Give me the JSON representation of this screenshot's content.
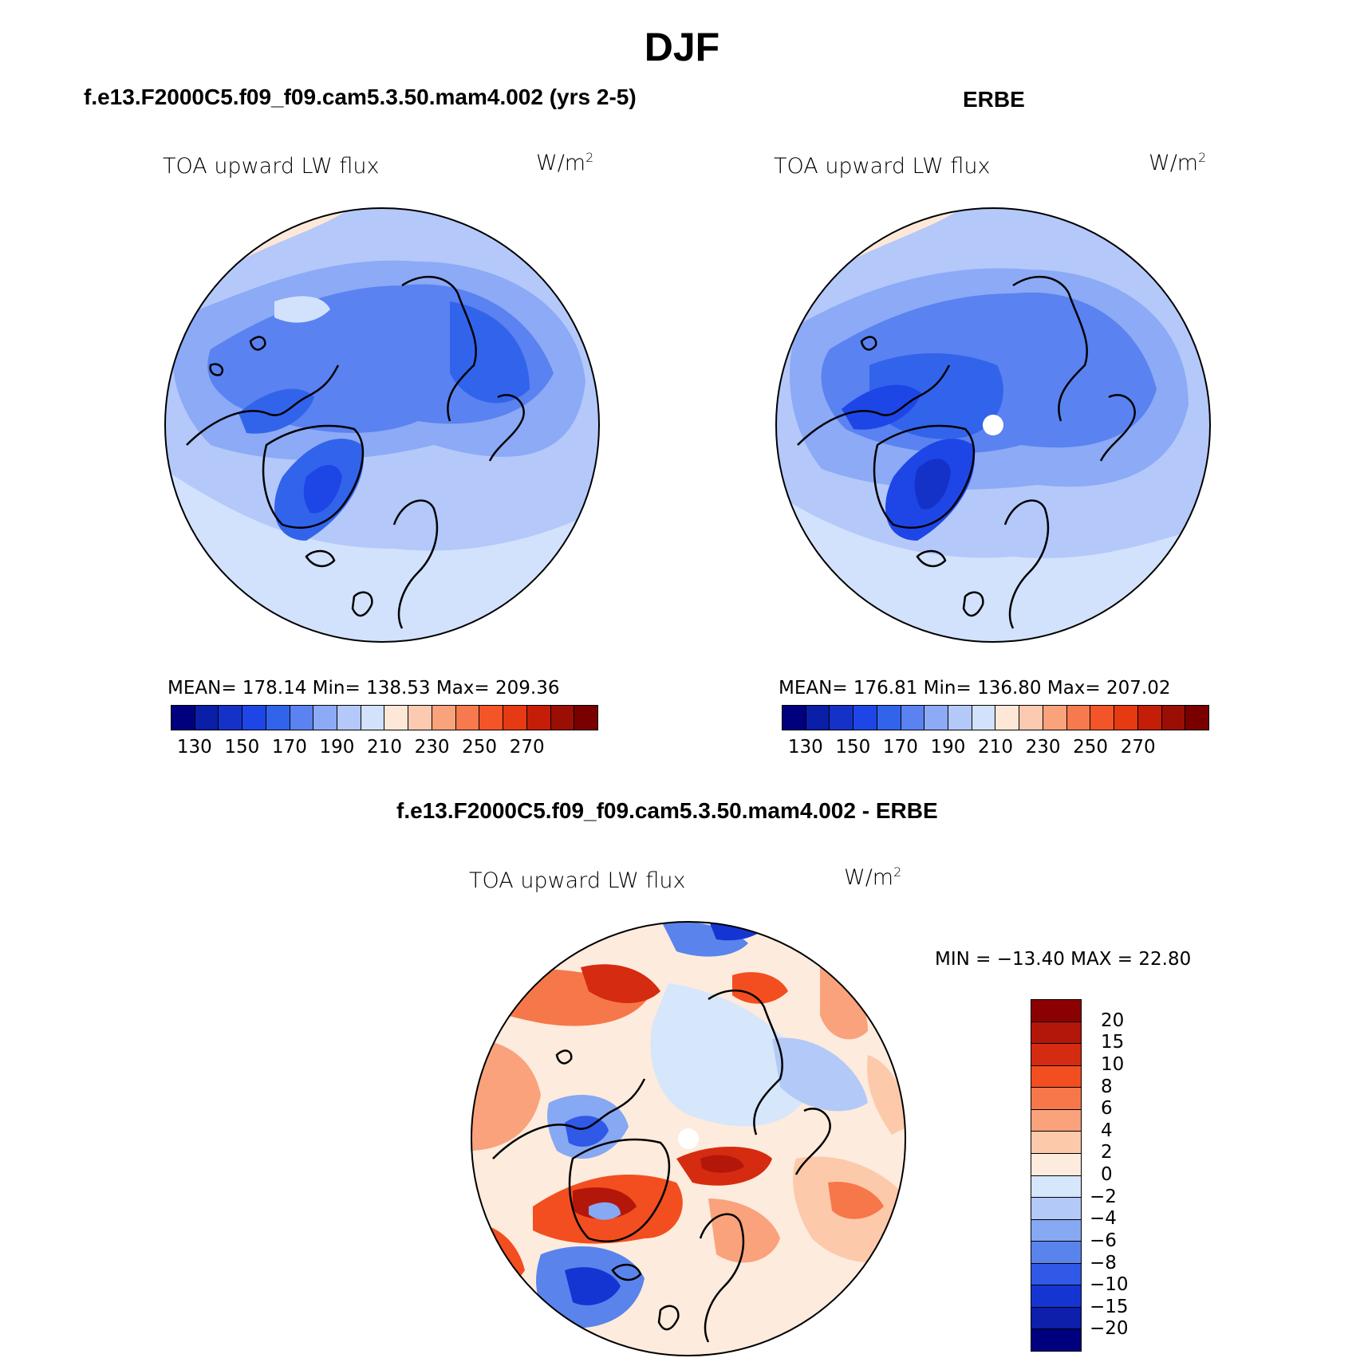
{
  "figure": {
    "title": "DJF",
    "units_base": "W/m",
    "units_exp": "2"
  },
  "panels": {
    "model": {
      "case": "f.e13.F2000C5.f09_f09.cam5.3.50.mam4.002 (yrs 2-5)",
      "variable": "TOA upward LW flux",
      "stats": "MEAN= 178.14   Min= 138.53   Max= 209.36"
    },
    "obs": {
      "case": "ERBE",
      "variable": "TOA upward LW flux",
      "stats": "MEAN= 176.81   Min= 136.80   Max= 207.02"
    },
    "diff": {
      "case": "f.e13.F2000C5.f09_f09.cam5.3.50.mam4.002 - ERBE",
      "variable": "TOA upward LW flux",
      "stats": "MIN = −13.40 MAX =  22.80"
    }
  },
  "colorbar_abs": {
    "colors": [
      "#00007f",
      "#0a1ea8",
      "#1432c8",
      "#1e46e6",
      "#3264eb",
      "#5a82f0",
      "#8caaf5",
      "#b4c8fa",
      "#d2e2fc",
      "#fde8d8",
      "#fccab0",
      "#f9a27c",
      "#f77a4e",
      "#f35528",
      "#e63a12",
      "#c41e08",
      "#9b0e04",
      "#7a0000"
    ],
    "tick_labels": [
      "130",
      "150",
      "170",
      "190",
      "210",
      "230",
      "250",
      "270"
    ]
  },
  "colorbar_diff": {
    "colors": [
      "#8b0000",
      "#b3170a",
      "#d52b10",
      "#f34e1f",
      "#f6784a",
      "#f9a27c",
      "#fcc9ab",
      "#fdebdd",
      "#d6e6fb",
      "#b3c9f7",
      "#87a8f2",
      "#5a84ec",
      "#2f59e6",
      "#1535d3",
      "#0d1fab",
      "#00007f"
    ],
    "tick_labels": [
      "20",
      "15",
      "10",
      "8",
      "6",
      "4",
      "2",
      "0",
      "−2",
      "−4",
      "−6",
      "−8",
      "−10",
      "−15",
      "−20"
    ]
  }
}
